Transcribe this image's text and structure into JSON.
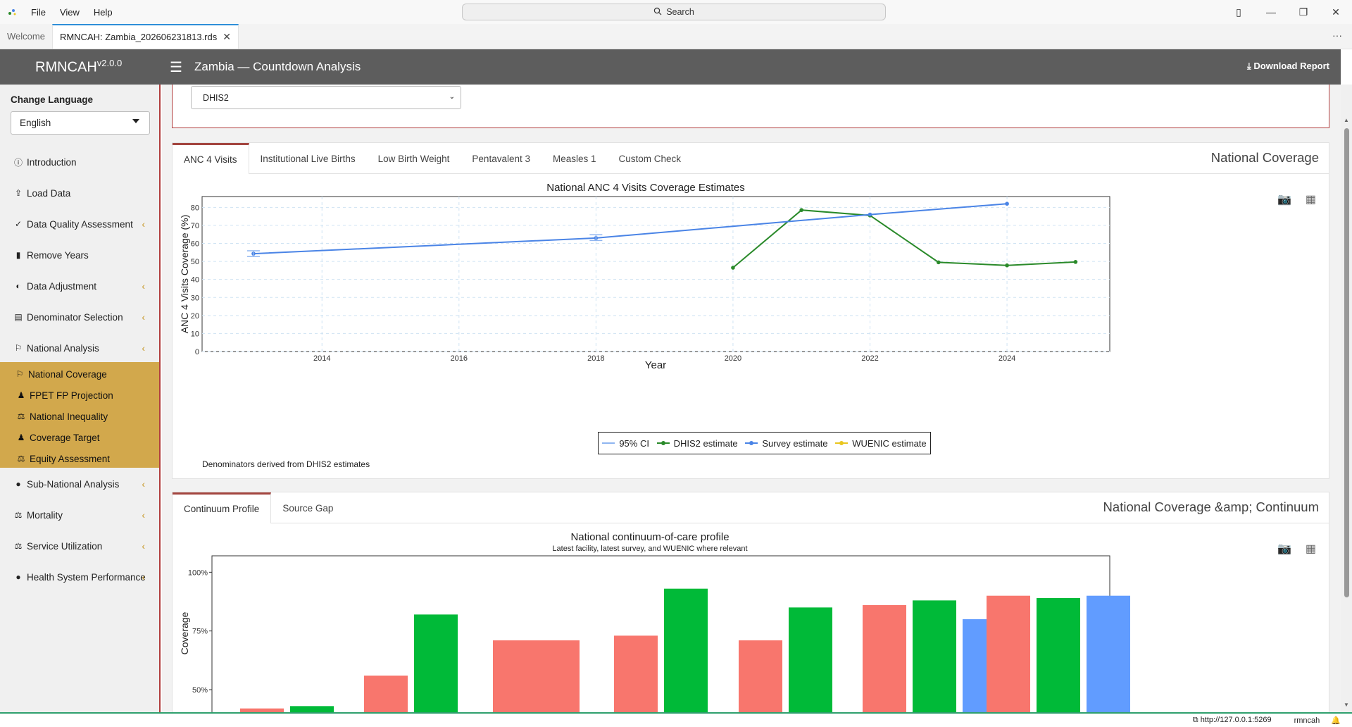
{
  "titlebar": {
    "menu": [
      "File",
      "View",
      "Help"
    ],
    "search_placeholder": "Search"
  },
  "editor_tabs": [
    {
      "label": "Welcome",
      "active": false
    },
    {
      "label": "RMNCAH: Zambia_202606231813.rds",
      "active": true
    }
  ],
  "header": {
    "brand": "RMNCAH",
    "version": "v2.0.0",
    "title": "Zambia — Countdown Analysis",
    "download_label": "Download Report"
  },
  "sidebar": {
    "lang_label": "Change Language",
    "lang_value": "English",
    "items": [
      {
        "label": "Introduction",
        "icon": "info-icon"
      },
      {
        "label": "Load Data",
        "icon": "upload-icon"
      },
      {
        "label": "Data Quality Assessment",
        "icon": "check-circle-icon",
        "expandable": true
      },
      {
        "label": "Remove Years",
        "icon": "trash-icon"
      },
      {
        "label": "Data Adjustment",
        "icon": "adjust-icon",
        "expandable": true
      },
      {
        "label": "Denominator Selection",
        "icon": "calculator-icon",
        "expandable": true
      },
      {
        "label": "National Analysis",
        "icon": "flag-icon",
        "expandable": true
      }
    ],
    "subitems": [
      {
        "label": "National Coverage",
        "icon": "flag-icon"
      },
      {
        "label": "FPET FP Projection",
        "icon": "person-chart-icon"
      },
      {
        "label": "National Inequality",
        "icon": "scale-icon"
      },
      {
        "label": "Coverage Target",
        "icon": "person-chart-icon"
      },
      {
        "label": "Equity Assessment",
        "icon": "scale-icon"
      }
    ],
    "items2": [
      {
        "label": "Sub-National Analysis",
        "icon": "globe-icon",
        "expandable": true
      },
      {
        "label": "Mortality",
        "icon": "scale-icon",
        "expandable": true
      },
      {
        "label": "Service Utilization",
        "icon": "scale-icon",
        "expandable": true
      },
      {
        "label": "Health System Performance",
        "icon": "globe-icon",
        "expandable": true
      }
    ]
  },
  "source_select": {
    "value": "DHIS2"
  },
  "card1": {
    "tabs": [
      "ANC 4 Visits",
      "Institutional Live Births",
      "Low Birth Weight",
      "Pentavalent 3",
      "Measles 1",
      "Custom Check"
    ],
    "title": "National Coverage",
    "note": "Denominators derived from DHIS2 estimates"
  },
  "card2": {
    "tabs": [
      "Continuum Profile",
      "Source Gap"
    ],
    "title": "National Coverage &amp; Continuum"
  },
  "status": {
    "url": "http://127.0.0.1:5269",
    "app": "rmncah"
  },
  "colors": {
    "dhis2": "#2a8a2a",
    "survey": "#4a84e6",
    "ci": "#8fb5f0",
    "wuenic": "#e9c61f",
    "red": "#f8766d",
    "green": "#00ba38",
    "blue": "#619cff"
  },
  "chart_data": [
    {
      "type": "line",
      "title": "National ANC 4 Visits Coverage Estimates",
      "xlabel": "Year",
      "ylabel": "ANC 4 Visits Coverage (%)",
      "xlim": [
        2012.25,
        2025.5
      ],
      "ylim": [
        0,
        86
      ],
      "xticks": [
        2014,
        2016,
        2018,
        2020,
        2022,
        2024
      ],
      "yticks": [
        0,
        10,
        20,
        30,
        40,
        50,
        60,
        70,
        80
      ],
      "legend": [
        "95% CI",
        "DHIS2 estimate",
        "Survey estimate",
        "WUENIC estimate"
      ],
      "series": [
        {
          "name": "DHIS2 estimate",
          "x": [
            2020,
            2021,
            2022,
            2023,
            2024,
            2025
          ],
          "y": [
            46.5,
            78.5,
            75.5,
            49.5,
            47.8,
            49.7
          ]
        },
        {
          "name": "Survey estimate",
          "x": [
            2013,
            2018,
            2022,
            2024
          ],
          "y": [
            54.3,
            63.0,
            76.0,
            82.0
          ]
        },
        {
          "name": "95% CI",
          "x": [
            2013,
            2018
          ],
          "low": [
            52.7,
            61.6
          ],
          "high": [
            55.9,
            64.8
          ]
        }
      ]
    },
    {
      "type": "bar",
      "title": "National continuum-of-care profile",
      "subtitle": "Latest facility, latest survey, and WUENIC where relevant",
      "ylabel": "Coverage",
      "yticks": [
        "50%",
        "75%",
        "100%"
      ],
      "ylim_visible": [
        35,
        107
      ],
      "groups": [
        {
          "values": [
            {
              "color": "red",
              "value": 42
            },
            {
              "color": "green",
              "value": 43
            }
          ]
        },
        {
          "values": [
            {
              "color": "red",
              "value": 56
            },
            {
              "color": "green",
              "value": 82
            }
          ]
        },
        {
          "values": [
            {
              "color": "red",
              "value": 71,
              "wide": true
            }
          ]
        },
        {
          "values": [
            {
              "color": "red",
              "value": 73
            },
            {
              "color": "green",
              "value": 93
            }
          ]
        },
        {
          "values": [
            {
              "color": "red",
              "value": 71
            },
            {
              "color": "green",
              "value": 85
            }
          ]
        },
        {
          "values": [
            {
              "color": "red",
              "value": 86
            },
            {
              "color": "green",
              "value": 88
            },
            {
              "color": "blue",
              "value": 80
            }
          ]
        },
        {
          "values": [
            {
              "color": "red",
              "value": 90
            },
            {
              "color": "green",
              "value": 89
            },
            {
              "color": "blue",
              "value": 90
            }
          ]
        }
      ]
    }
  ]
}
